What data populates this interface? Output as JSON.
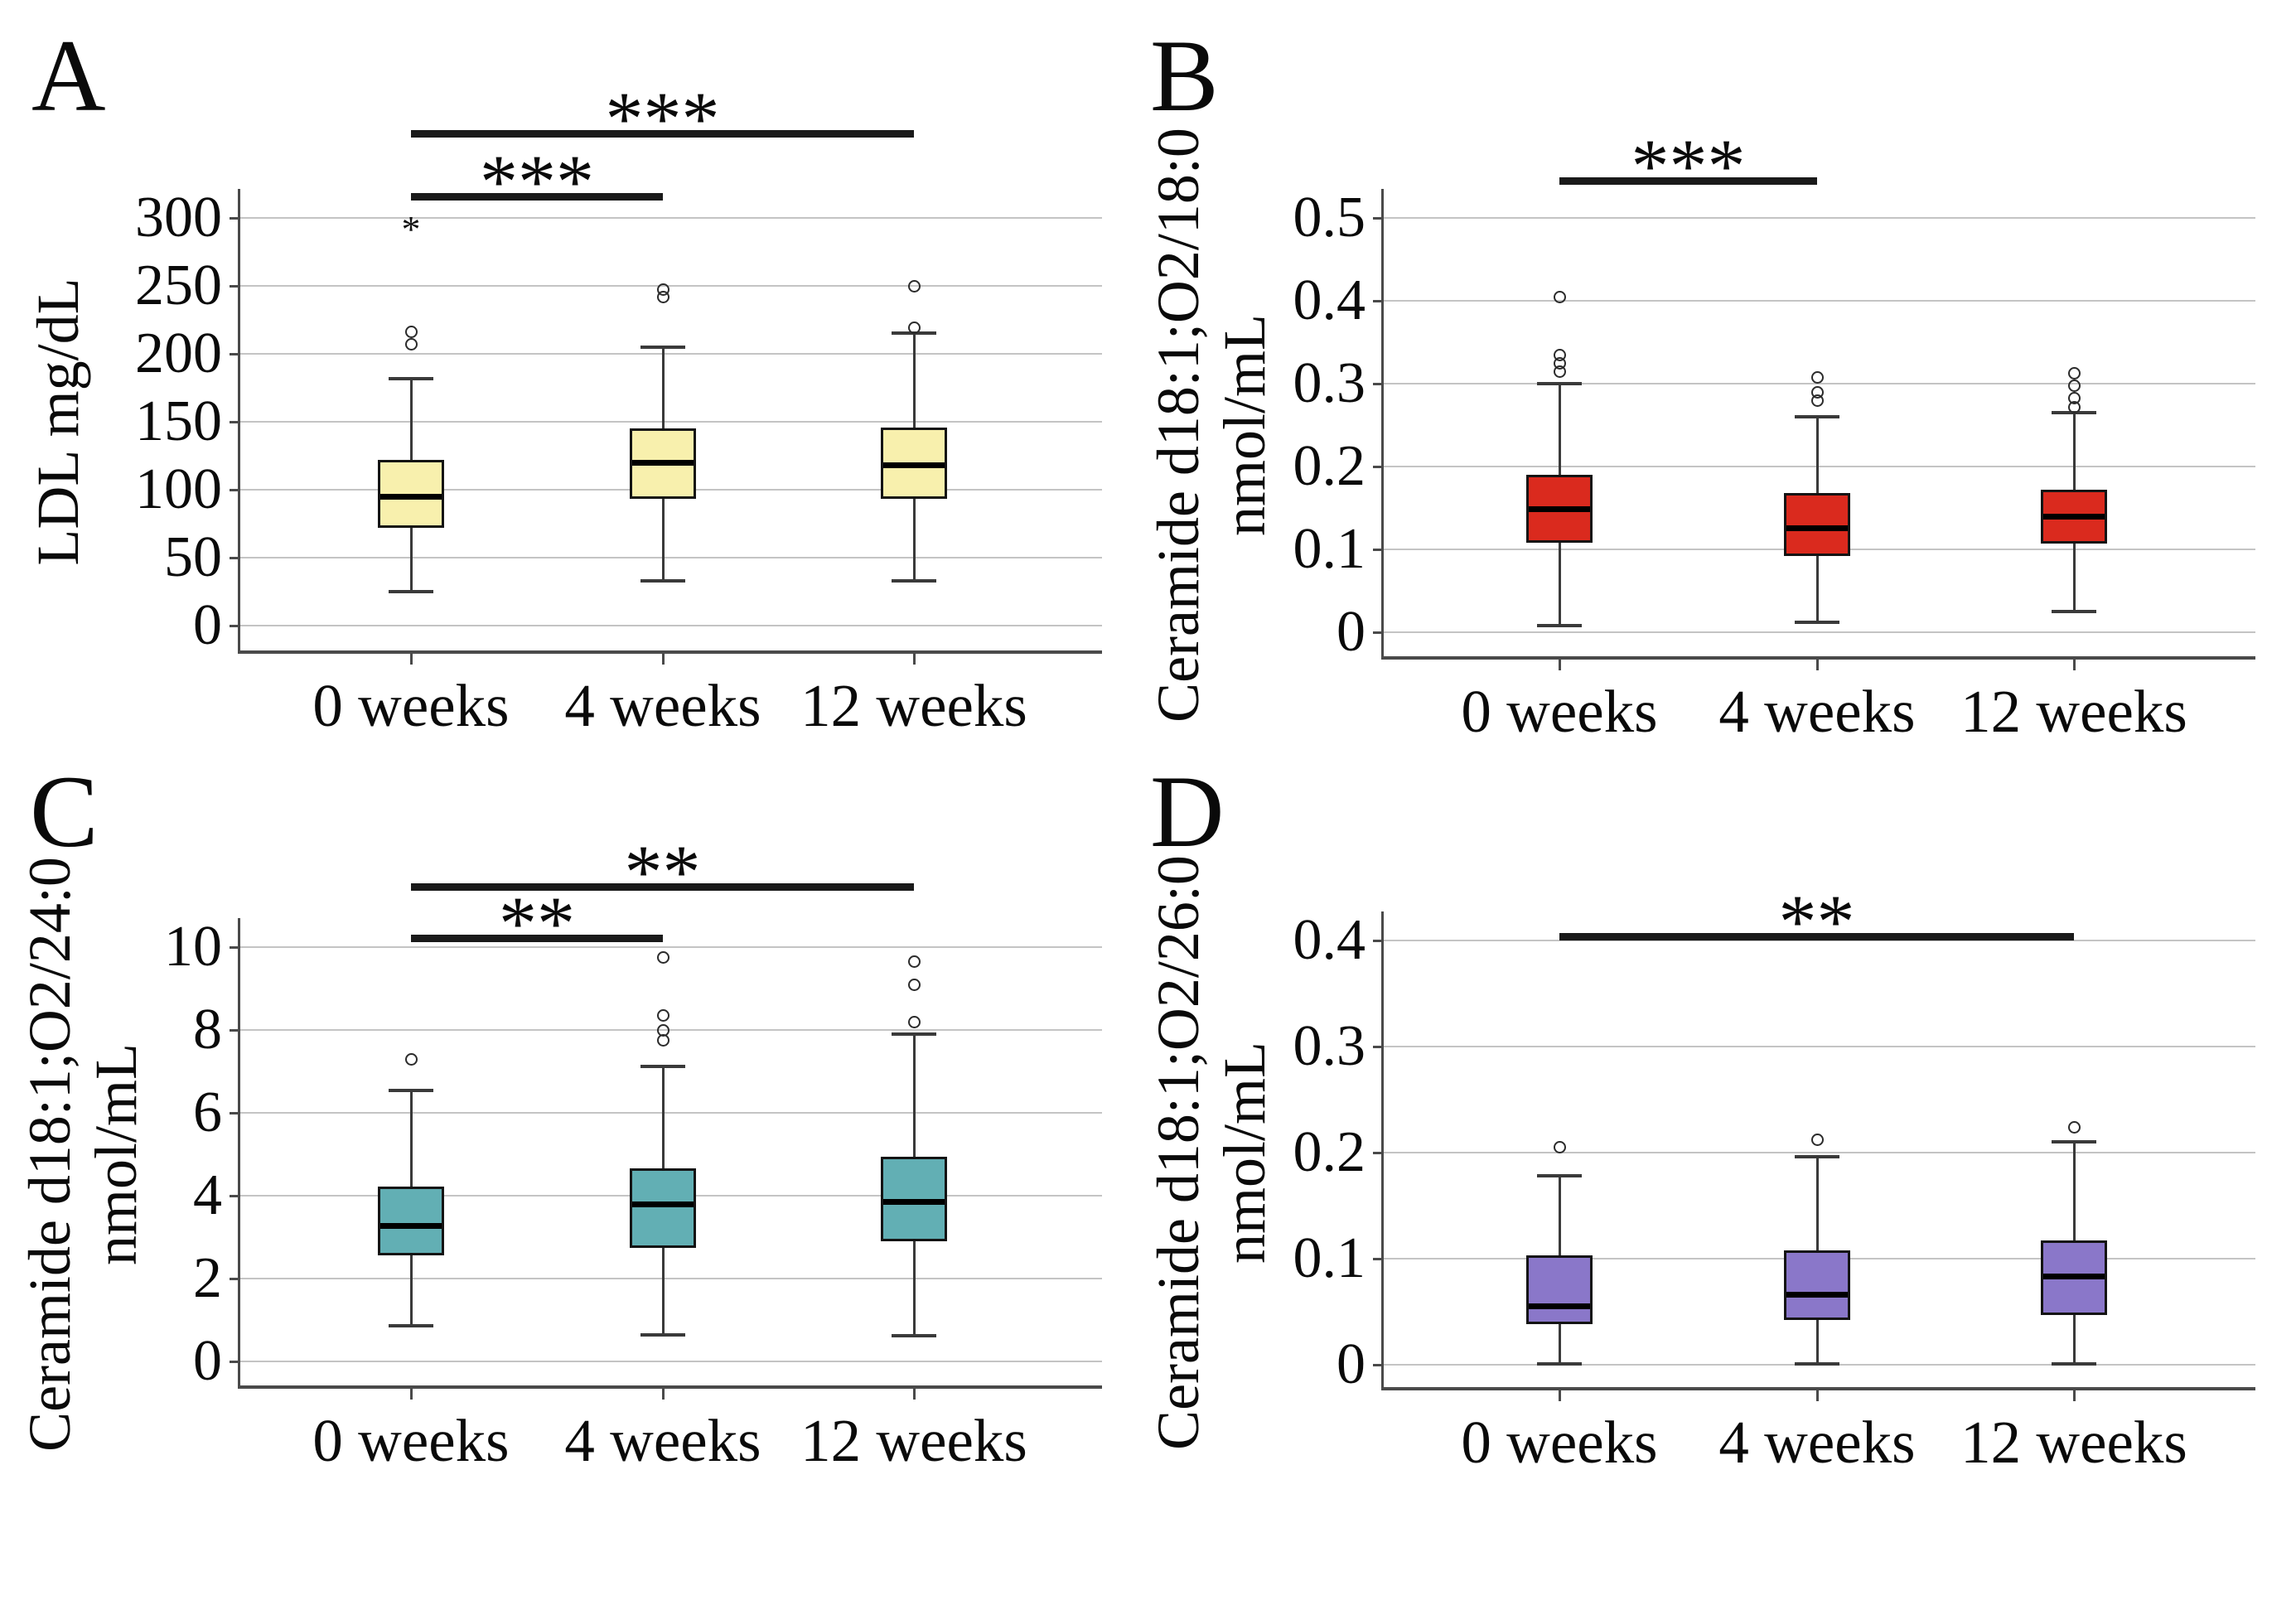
{
  "figure": {
    "background": "#ffffff",
    "text_color": "#000000",
    "gridline_color": "#c4c4c4",
    "axis_color": "#4a4a4a",
    "whisker_color": "#3a3a3a",
    "box_border_color": "#141414",
    "significance_bar_color": "#1a1a1a"
  },
  "chart_data": [
    {
      "type": "box",
      "panel_letter": "A",
      "ylabel_lines": [
        "LDL mg/dL"
      ],
      "categories": [
        "0 weeks",
        "4 weeks",
        "12 weeks"
      ],
      "ylim": [
        0,
        300
      ],
      "yticks": [
        300,
        250,
        200,
        150,
        100,
        50,
        0
      ],
      "ytick_labels": [
        "300",
        "250",
        "200",
        "150",
        "100",
        "50",
        "0"
      ],
      "grid": true,
      "legend": "none",
      "box_color": "#f8f0ad",
      "boxes": [
        {
          "category": "0 weeks",
          "whisker_low": 25,
          "q1": 72,
          "median": 95,
          "q3": 122,
          "whisker_high": 182,
          "outliers": [
            {
              "value": 207,
              "glyph": "circle"
            },
            {
              "value": 216,
              "glyph": "circle"
            },
            {
              "value": 297,
              "glyph": "star"
            }
          ]
        },
        {
          "category": "4 weeks",
          "whisker_low": 33,
          "q1": 93,
          "median": 120,
          "q3": 145,
          "whisker_high": 205,
          "outliers": [
            {
              "value": 242,
              "glyph": "circle"
            },
            {
              "value": 247,
              "glyph": "circle"
            }
          ]
        },
        {
          "category": "12 weeks",
          "whisker_low": 33,
          "q1": 93,
          "median": 118,
          "q3": 146,
          "whisker_high": 215,
          "outliers": [
            {
              "value": 219,
              "glyph": "circle"
            },
            {
              "value": 250,
              "glyph": "circle"
            }
          ]
        }
      ],
      "significance": [
        {
          "from": 0,
          "to": 1,
          "label": "***",
          "level": 0
        },
        {
          "from": 0,
          "to": 2,
          "label": "***",
          "level": 1
        }
      ]
    },
    {
      "type": "box",
      "panel_letter": "B",
      "ylabel_lines": [
        "Ceramide d18:1;O2/18:0",
        "nmol/mL"
      ],
      "categories": [
        "0 weeks",
        "4 weeks",
        "12 weeks"
      ],
      "ylim": [
        0,
        0.5
      ],
      "yticks": [
        0.5,
        0.4,
        0.3,
        0.2,
        0.1,
        0
      ],
      "ytick_labels": [
        "0.5",
        "0.4",
        "0.3",
        "0.2",
        "0.1",
        "0"
      ],
      "grid": true,
      "legend": "none",
      "box_color": "#da2a1e",
      "boxes": [
        {
          "category": "0 weeks",
          "whisker_low": 0.008,
          "q1": 0.108,
          "median": 0.149,
          "q3": 0.19,
          "whisker_high": 0.3,
          "outliers": [
            {
              "value": 0.315,
              "glyph": "circle"
            },
            {
              "value": 0.325,
              "glyph": "circle"
            },
            {
              "value": 0.335,
              "glyph": "circle"
            },
            {
              "value": 0.405,
              "glyph": "circle"
            }
          ]
        },
        {
          "category": "4 weeks",
          "whisker_low": 0.012,
          "q1": 0.092,
          "median": 0.126,
          "q3": 0.168,
          "whisker_high": 0.26,
          "outliers": [
            {
              "value": 0.28,
              "glyph": "circle"
            },
            {
              "value": 0.29,
              "glyph": "circle"
            },
            {
              "value": 0.308,
              "glyph": "circle"
            }
          ]
        },
        {
          "category": "12 weeks",
          "whisker_low": 0.025,
          "q1": 0.107,
          "median": 0.14,
          "q3": 0.172,
          "whisker_high": 0.265,
          "outliers": [
            {
              "value": 0.272,
              "glyph": "circle"
            },
            {
              "value": 0.283,
              "glyph": "circle"
            },
            {
              "value": 0.298,
              "glyph": "circle"
            },
            {
              "value": 0.313,
              "glyph": "circle"
            }
          ]
        }
      ],
      "significance": [
        {
          "from": 0,
          "to": 1,
          "label": "***",
          "level": 0
        }
      ]
    },
    {
      "type": "box",
      "panel_letter": "C",
      "ylabel_lines": [
        "Ceramide d18:1;O2/24:0",
        "nmol/mL"
      ],
      "categories": [
        "0 weeks",
        "4 weeks",
        "12 weeks"
      ],
      "ylim": [
        0,
        10
      ],
      "yticks": [
        10,
        8,
        6,
        4,
        2,
        0
      ],
      "ytick_labels": [
        "10",
        "8",
        "6",
        "4",
        "2",
        "0"
      ],
      "grid": true,
      "legend": "none",
      "box_color": "#62afb4",
      "boxes": [
        {
          "category": "0 weeks",
          "whisker_low": 0.86,
          "q1": 2.56,
          "median": 3.28,
          "q3": 4.22,
          "whisker_high": 6.55,
          "outliers": [
            {
              "value": 7.3,
              "glyph": "circle"
            }
          ]
        },
        {
          "category": "4 weeks",
          "whisker_low": 0.64,
          "q1": 2.75,
          "median": 3.8,
          "q3": 4.66,
          "whisker_high": 7.12,
          "outliers": [
            {
              "value": 7.75,
              "glyph": "circle"
            },
            {
              "value": 8.0,
              "glyph": "circle"
            },
            {
              "value": 8.35,
              "glyph": "circle"
            },
            {
              "value": 9.75,
              "glyph": "circle"
            }
          ]
        },
        {
          "category": "12 weeks",
          "whisker_low": 0.62,
          "q1": 2.9,
          "median": 3.85,
          "q3": 4.95,
          "whisker_high": 7.9,
          "outliers": [
            {
              "value": 8.2,
              "glyph": "circle"
            },
            {
              "value": 9.1,
              "glyph": "circle"
            },
            {
              "value": 9.65,
              "glyph": "circle"
            }
          ]
        }
      ],
      "significance": [
        {
          "from": 0,
          "to": 1,
          "label": "**",
          "level": 0
        },
        {
          "from": 0,
          "to": 2,
          "label": "**",
          "level": 1
        }
      ]
    },
    {
      "type": "box",
      "panel_letter": "D",
      "ylabel_lines": [
        "Ceramide d18:1;O2/26:0",
        "nmol/mL"
      ],
      "categories": [
        "0 weeks",
        "4 weeks",
        "12 weeks"
      ],
      "ylim": [
        0,
        0.4
      ],
      "yticks": [
        0.4,
        0.3,
        0.2,
        0.1,
        0
      ],
      "ytick_labels": [
        "0.4",
        "0.3",
        "0.2",
        "0.1",
        "0"
      ],
      "grid": true,
      "legend": "none",
      "box_color": "#8a77c9",
      "boxes": [
        {
          "category": "0 weeks",
          "whisker_low": 0.001,
          "q1": 0.038,
          "median": 0.055,
          "q3": 0.103,
          "whisker_high": 0.178,
          "outliers": [
            {
              "value": 0.205,
              "glyph": "circle"
            }
          ]
        },
        {
          "category": "4 weeks",
          "whisker_low": 0.001,
          "q1": 0.042,
          "median": 0.066,
          "q3": 0.108,
          "whisker_high": 0.196,
          "outliers": [
            {
              "value": 0.212,
              "glyph": "circle"
            }
          ]
        },
        {
          "category": "12 weeks",
          "whisker_low": 0.001,
          "q1": 0.047,
          "median": 0.083,
          "q3": 0.117,
          "whisker_high": 0.21,
          "outliers": [
            {
              "value": 0.224,
              "glyph": "circle"
            }
          ]
        }
      ],
      "significance": [
        {
          "from": 0,
          "to": 2,
          "label": "**",
          "level": 0
        }
      ]
    }
  ]
}
